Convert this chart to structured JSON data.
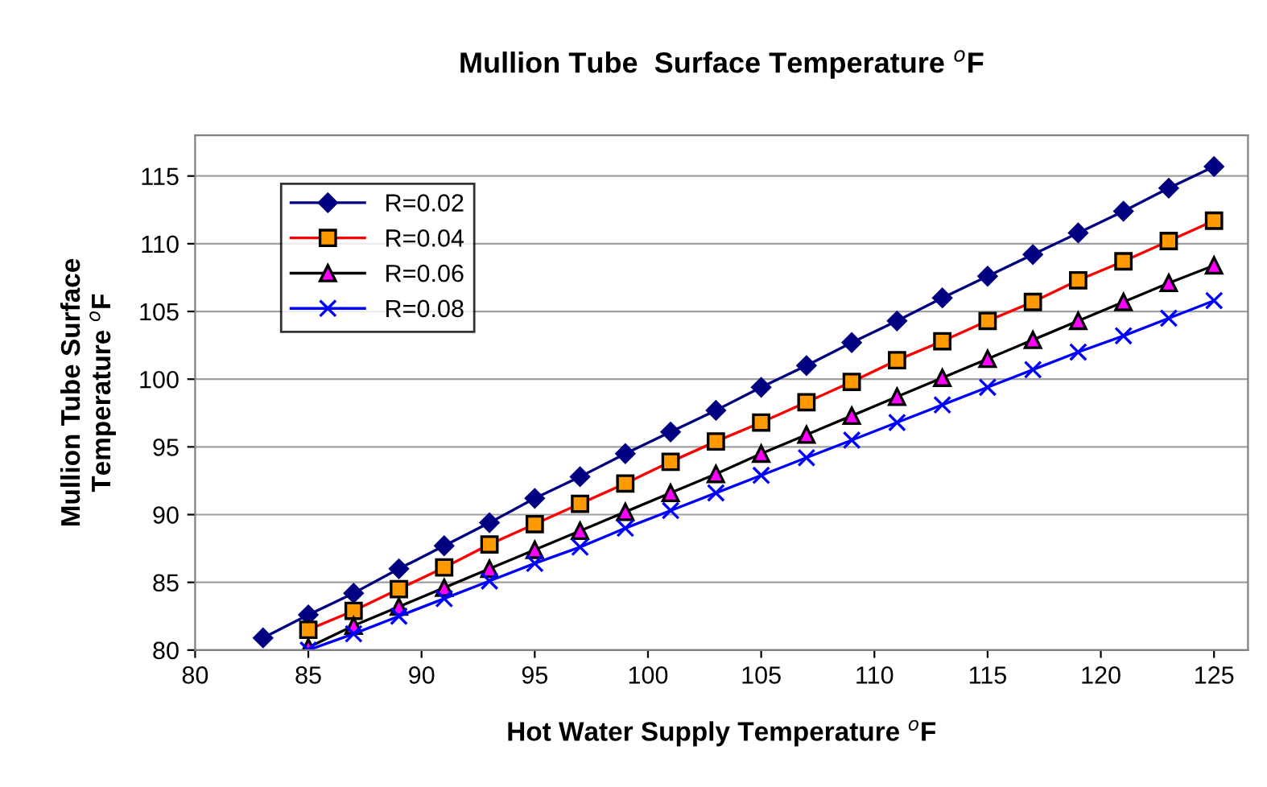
{
  "chart_data": {
    "type": "line",
    "title": "Mullion Tube  Surface Temperature $^{o}$F",
    "xlabel": "Hot Water Supply Temperature $^{o}$F",
    "ylabel": "Mullion Tube Surface\nTemperature $^{o}$F",
    "xlim": [
      80,
      126.5
    ],
    "xticks": [
      80,
      85,
      90,
      95,
      100,
      105,
      110,
      115,
      120,
      125
    ],
    "ylim": [
      80,
      118
    ],
    "yticks": [
      80,
      85,
      90,
      95,
      100,
      105,
      110,
      115
    ],
    "grid": "y",
    "legend": "top left",
    "line_style": "solid",
    "series": [
      {
        "name": "R=0.02",
        "color": "#000080",
        "marker": "diamond",
        "x": [
          83,
          85,
          87,
          89,
          91,
          93,
          95,
          97,
          99,
          101,
          103,
          105,
          107,
          109,
          111,
          113,
          115,
          117,
          119,
          121,
          123,
          125
        ],
        "values": [
          80.9,
          82.6,
          84.2,
          86.0,
          87.7,
          89.4,
          91.2,
          92.8,
          94.5,
          96.1,
          97.7,
          99.4,
          101.0,
          102.7,
          104.3,
          106.0,
          107.6,
          109.2,
          110.8,
          112.4,
          114.1,
          115.7
        ]
      },
      {
        "name": "R=0.04",
        "color": "#ff0000",
        "marker": "square",
        "x": [
          85,
          87,
          89,
          91,
          93,
          95,
          97,
          99,
          101,
          103,
          105,
          107,
          109,
          111,
          113,
          115,
          117,
          119,
          121,
          123,
          125
        ],
        "values": [
          81.5,
          82.9,
          84.5,
          86.1,
          87.8,
          89.3,
          90.8,
          92.3,
          93.9,
          95.4,
          96.8,
          98.3,
          99.8,
          101.4,
          102.8,
          104.3,
          105.7,
          107.3,
          108.7,
          110.2,
          111.7
        ]
      },
      {
        "name": "R=0.06",
        "color": "#000000",
        "marker": "triangle",
        "x": [
          85,
          87,
          89,
          91,
          93,
          95,
          97,
          99,
          101,
          103,
          105,
          107,
          109,
          111,
          113,
          115,
          117,
          119,
          121,
          123,
          125
        ],
        "values": [
          80.2,
          81.8,
          83.2,
          84.6,
          86.0,
          87.4,
          88.8,
          90.2,
          91.6,
          93.0,
          94.5,
          95.9,
          97.3,
          98.7,
          100.1,
          101.5,
          102.9,
          104.3,
          105.7,
          107.1,
          108.4
        ]
      },
      {
        "name": "R=0.08",
        "color": "#0000ff",
        "marker": "cross",
        "x": [
          85,
          87,
          89,
          91,
          93,
          95,
          97,
          99,
          101,
          103,
          105,
          107,
          109,
          111,
          113,
          115,
          117,
          119,
          121,
          123,
          125
        ],
        "values": [
          80.0,
          81.2,
          82.5,
          83.8,
          85.1,
          86.4,
          87.6,
          89.0,
          90.3,
          91.6,
          92.9,
          94.2,
          95.5,
          96.8,
          98.1,
          99.4,
          100.7,
          102.0,
          103.2,
          104.5,
          105.8
        ]
      }
    ]
  }
}
